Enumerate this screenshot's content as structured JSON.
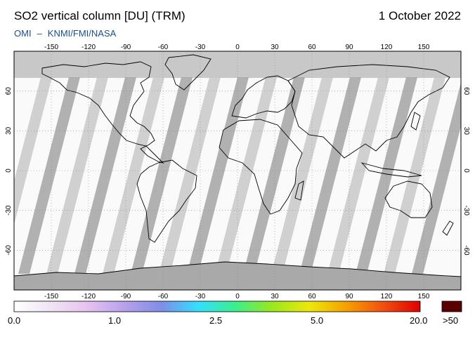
{
  "header": {
    "title": "SO2 vertical column [DU] (TRM)",
    "date": "1 October 2022",
    "instrument": "OMI",
    "institutions": "KNMI/FMI/NASA"
  },
  "map": {
    "longitude_ticks": [
      -150,
      -120,
      -90,
      -60,
      -30,
      0,
      30,
      60,
      90,
      120,
      150
    ],
    "latitude_ticks": [
      60,
      30,
      0,
      -30,
      -60
    ],
    "extent": {
      "lon": [
        -180,
        180
      ],
      "lat": [
        -90,
        90
      ]
    },
    "gridlines": true
  },
  "colorbar": {
    "labels": [
      "0.0",
      "1.0",
      "2.5",
      "5.0",
      "20.0",
      ">50"
    ],
    "overflow_color": "#5a0000",
    "stops": [
      "#ffffff",
      "#f0e4f4",
      "#e6c2f0",
      "#b7a0ec",
      "#7e8ee6",
      "#33e0ff",
      "#3cee8c",
      "#9be81e",
      "#ece80a",
      "#f6a000",
      "#f05010",
      "#e00000"
    ]
  },
  "colors": {
    "no_data": "#c8c8c8",
    "swath_alt": "#a3a3a3",
    "land_outline": "#000000",
    "credits": "#1a4f8c"
  }
}
